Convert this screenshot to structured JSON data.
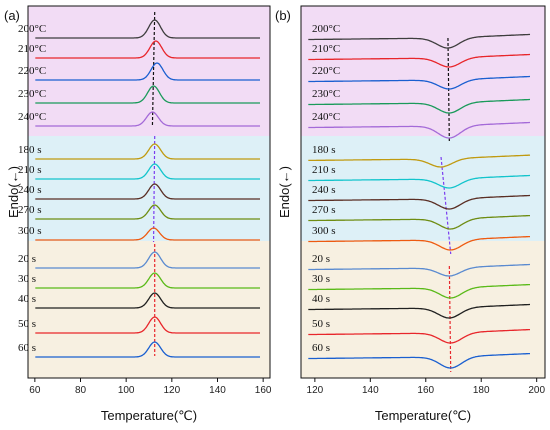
{
  "colors": {
    "band_temp": "#f2dcf5",
    "band_time": "#ddf0f7",
    "band_speed": "#f7f0e1"
  },
  "chart_data": [
    {
      "type": "line",
      "panel_label": "(a)",
      "xlabel": "Temperature(℃)",
      "ylabel": "Endo(←)",
      "xlim": [
        57,
        163
      ],
      "xticks": [
        "60",
        "80",
        "100",
        "120",
        "140",
        "160"
      ],
      "xtick_values": [
        60,
        80,
        100,
        120,
        140,
        160
      ],
      "peak_direction": "up",
      "peak_width": 2.6,
      "curves": [
        {
          "label": "200°C",
          "color": "#3d3d3d",
          "peak_x": 112.5,
          "peak_height": 18,
          "group": "temp"
        },
        {
          "label": "210°C",
          "color": "#e8262b",
          "peak_x": 113.0,
          "peak_height": 17,
          "group": "temp"
        },
        {
          "label": "220°C",
          "color": "#1a5fd0",
          "peak_x": 113.5,
          "peak_height": 17,
          "group": "temp"
        },
        {
          "label": "230°C",
          "color": "#1a9a5a",
          "peak_x": 112.0,
          "peak_height": 17,
          "group": "temp"
        },
        {
          "label": "240°C",
          "color": "#a46ad8",
          "peak_x": 111.5,
          "peak_height": 14,
          "group": "temp"
        },
        {
          "label": "180 s",
          "color": "#c09a10",
          "peak_x": 112.5,
          "peak_height": 15,
          "group": "time"
        },
        {
          "label": "210 s",
          "color": "#12c4cc",
          "peak_x": 112.5,
          "peak_height": 15,
          "group": "time"
        },
        {
          "label": "240 s",
          "color": "#5a2e24",
          "peak_x": 112.5,
          "peak_height": 15,
          "group": "time"
        },
        {
          "label": "270 s",
          "color": "#6e8c12",
          "peak_x": 112.5,
          "peak_height": 14,
          "group": "time"
        },
        {
          "label": "300 s",
          "color": "#ee5a10",
          "peak_x": 112.0,
          "peak_height": 12,
          "group": "time"
        },
        {
          "label": "20 s",
          "color": "#5a8ad0",
          "peak_x": 112.5,
          "peak_height": 16,
          "group": "speed"
        },
        {
          "label": "30 s",
          "color": "#5aba18",
          "peak_x": 112.5,
          "peak_height": 15,
          "group": "speed"
        },
        {
          "label": "40 s",
          "color": "#202020",
          "peak_x": 112.5,
          "peak_height": 15,
          "group": "speed"
        },
        {
          "label": "50 s",
          "color": "#e8262b",
          "peak_x": 112.5,
          "peak_height": 16,
          "group": "speed"
        },
        {
          "label": "60 s",
          "color": "#1a5fd0",
          "peak_x": 112.5,
          "peak_height": 15,
          "group": "speed"
        }
      ]
    },
    {
      "type": "line",
      "panel_label": "(b)",
      "xlabel": "Temperature(℃)",
      "ylabel": "Endo(←)",
      "xlim": [
        115,
        203
      ],
      "xticks": [
        "120",
        "140",
        "160",
        "180",
        "200"
      ],
      "xtick_values": [
        120,
        140,
        160,
        180,
        200
      ],
      "peak_direction": "down",
      "peak_width": 4.0,
      "curves": [
        {
          "label": "200°C",
          "color": "#3d3d3d",
          "peak_x": 168.0,
          "peak_height": 10,
          "group": "temp"
        },
        {
          "label": "210°C",
          "color": "#e8262b",
          "peak_x": 168.5,
          "peak_height": 9,
          "group": "temp"
        },
        {
          "label": "220°C",
          "color": "#1a5fd0",
          "peak_x": 168.5,
          "peak_height": 9,
          "group": "temp"
        },
        {
          "label": "230°C",
          "color": "#1a9a5a",
          "peak_x": 168.5,
          "peak_height": 10,
          "group": "temp"
        },
        {
          "label": "240°C",
          "color": "#a46ad8",
          "peak_x": 168.5,
          "peak_height": 12,
          "group": "temp"
        },
        {
          "label": "180 s",
          "color": "#c09a10",
          "peak_x": 165.5,
          "peak_height": 8,
          "group": "time"
        },
        {
          "label": "210 s",
          "color": "#12c4cc",
          "peak_x": 168.5,
          "peak_height": 9,
          "group": "time"
        },
        {
          "label": "240 s",
          "color": "#5a2e24",
          "peak_x": 168.5,
          "peak_height": 10,
          "group": "time"
        },
        {
          "label": "270 s",
          "color": "#6e8c12",
          "peak_x": 169.0,
          "peak_height": 10,
          "group": "time"
        },
        {
          "label": "300 s",
          "color": "#ee5a10",
          "peak_x": 169.0,
          "peak_height": 10,
          "group": "time"
        },
        {
          "label": "20 s",
          "color": "#5a8ad0",
          "peak_x": 168.5,
          "peak_height": 8,
          "group": "speed"
        },
        {
          "label": "30 s",
          "color": "#5aba18",
          "peak_x": 169.0,
          "peak_height": 10,
          "group": "speed"
        },
        {
          "label": "40 s",
          "color": "#202020",
          "peak_x": 168.5,
          "peak_height": 10,
          "group": "speed"
        },
        {
          "label": "50 s",
          "color": "#e8262b",
          "peak_x": 169.0,
          "peak_height": 10,
          "group": "speed"
        },
        {
          "label": "60 s",
          "color": "#1a5fd0",
          "peak_x": 169.0,
          "peak_height": 11,
          "group": "speed"
        }
      ]
    }
  ]
}
